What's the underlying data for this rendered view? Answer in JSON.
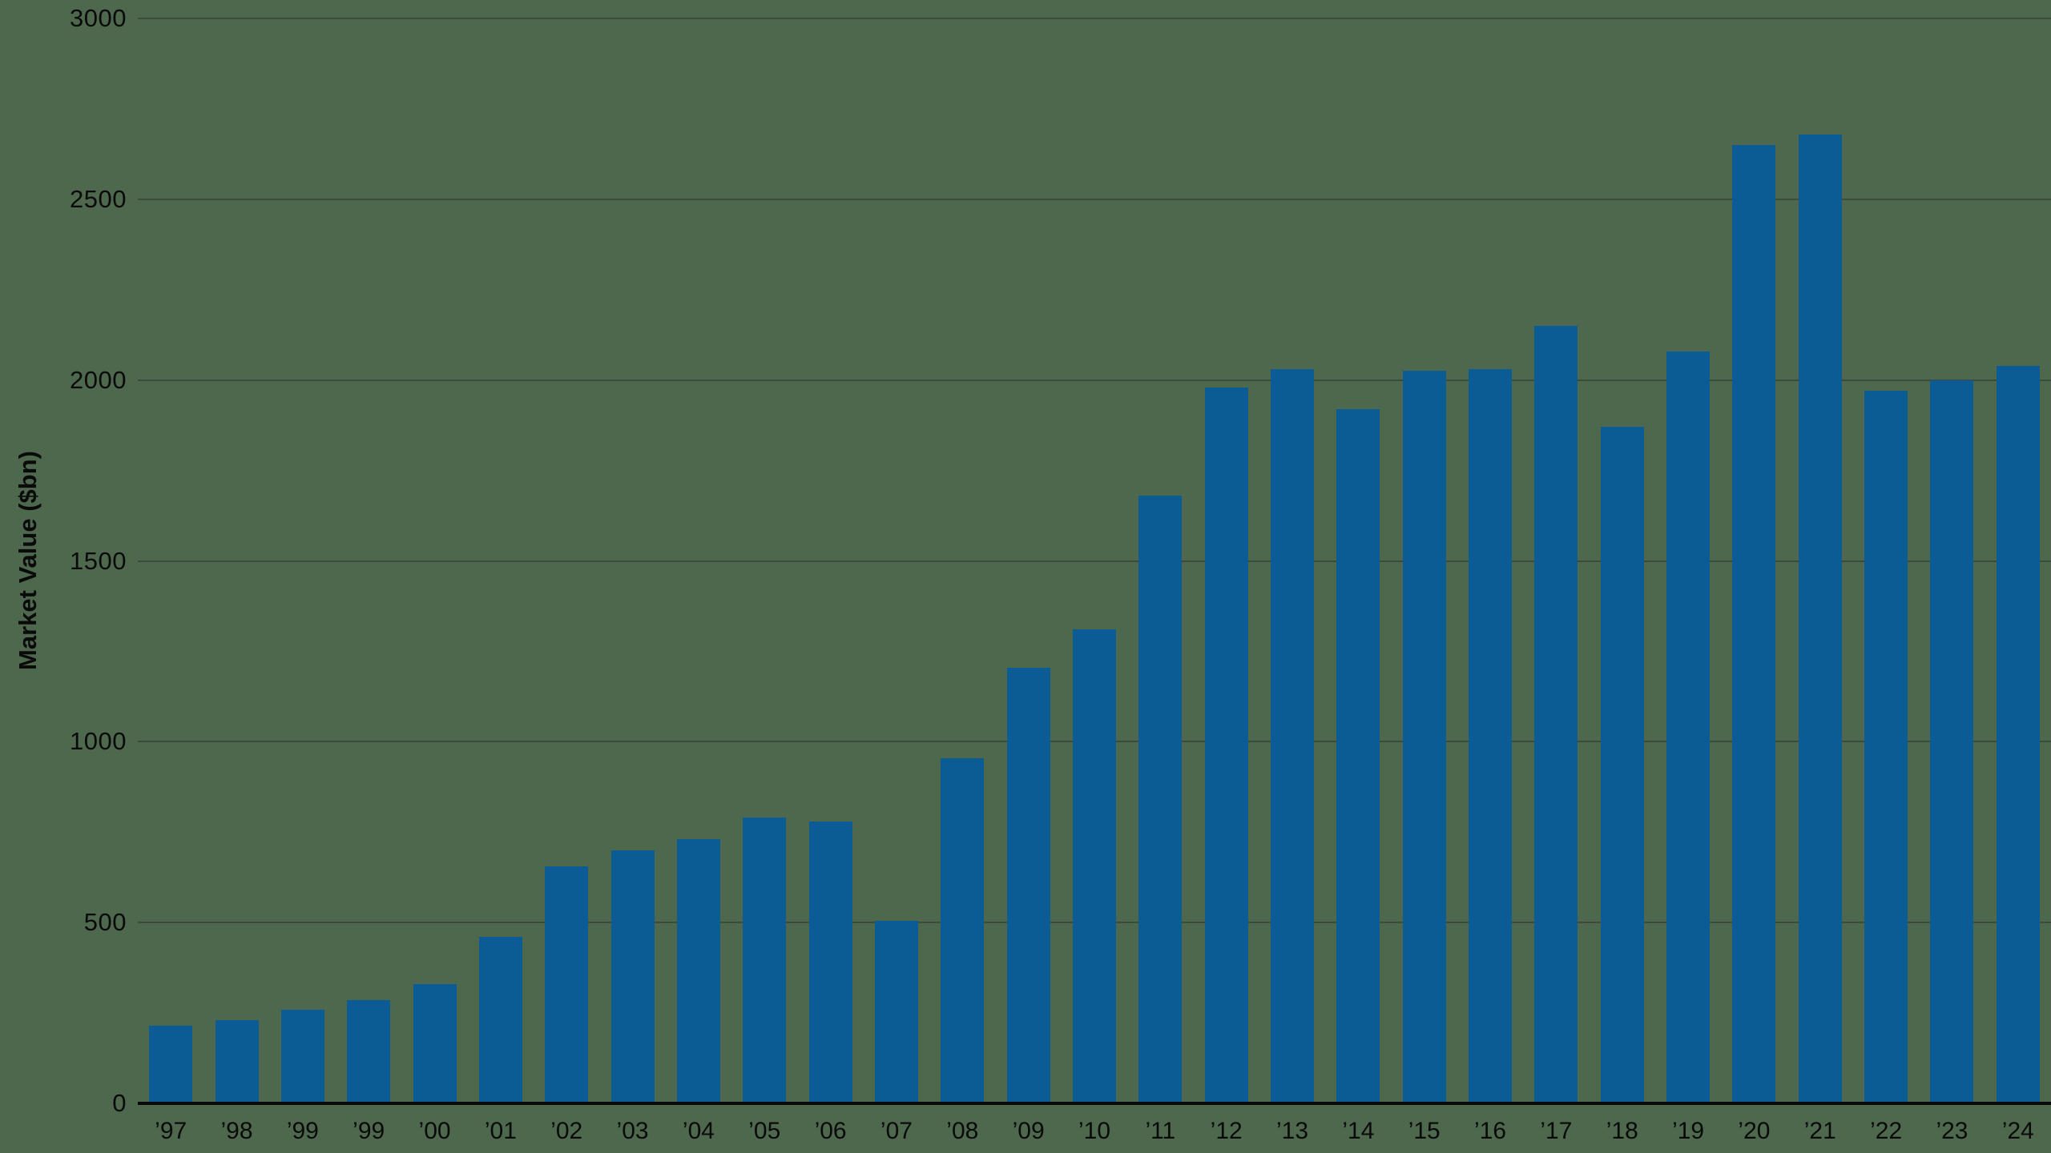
{
  "chart_data": {
    "type": "bar",
    "title": "",
    "xlabel": "",
    "ylabel": "Market Value ($bn)",
    "categories": [
      "’97",
      "’98",
      "’99",
      "’99",
      "’00",
      "’01",
      "’02",
      "’03",
      "’04",
      "’05",
      "’06",
      "’07",
      "’08",
      "’09",
      "’10",
      "’11",
      "’12",
      "’13",
      "’14",
      "’15",
      "’16",
      "’17",
      "’18",
      "’19",
      "’20",
      "’21",
      "’22",
      "’23",
      "’24"
    ],
    "values": [
      215,
      230,
      260,
      285,
      330,
      460,
      655,
      700,
      730,
      790,
      780,
      505,
      955,
      1205,
      1310,
      1680,
      1980,
      2030,
      1920,
      2025,
      2030,
      2150,
      1870,
      2080,
      2650,
      2680,
      1970,
      2000,
      2040
    ],
    "ylim": [
      0,
      3000
    ],
    "yticks": [
      0,
      500,
      1000,
      1500,
      2000,
      2500,
      3000
    ],
    "grid": true,
    "legend": "none",
    "bar_color": "#0B5C94",
    "background_color": "#4E684E",
    "gridline_color": "#3C4B3D",
    "axis_line_color": "#0A0A0A",
    "text_color": "#0A0A0A"
  }
}
